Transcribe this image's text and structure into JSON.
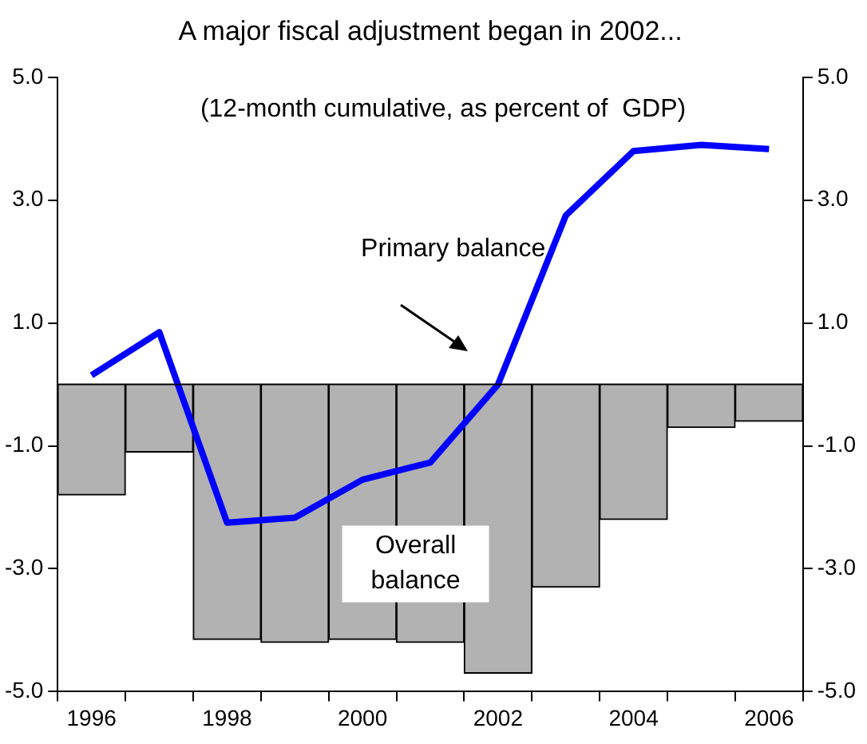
{
  "chart_data": {
    "type": "bar",
    "title": "A major fiscal adjustment began in 2002...",
    "annotations": [
      "(12-month cumulative, as percent of  GDP)"
    ],
    "categories": [
      "1996",
      null,
      "1998",
      null,
      "2000",
      null,
      "2002",
      null,
      "2004",
      null,
      "2006"
    ],
    "series": [
      {
        "name": "Overall balance",
        "color": "#b2b2b2",
        "values": [
          -1.8,
          -1.1,
          -4.15,
          -4.2,
          -4.15,
          -4.2,
          -4.7,
          -3.3,
          -2.2,
          -0.7,
          -0.6
        ]
      },
      {
        "name": "Primary balance",
        "type": "line",
        "color": "#0000ff",
        "values": [
          0.15,
          0.85,
          -2.25,
          -2.17,
          -1.55,
          -1.27,
          0.0,
          2.75,
          3.8,
          3.9,
          3.83
        ]
      }
    ],
    "ylim": [
      -5,
      5
    ],
    "yticks": [
      {
        "value": -5,
        "label": "-5.0"
      },
      {
        "value": -3,
        "label": "-3.0"
      },
      {
        "value": -1,
        "label": "-1.0"
      },
      {
        "value": 1,
        "label": "1.0"
      },
      {
        "value": 3,
        "label": "3.0"
      },
      {
        "value": 5,
        "label": "5.0"
      }
    ],
    "y2lim": [
      -5,
      5
    ],
    "y2ticks": [
      {
        "value": -5,
        "label": "-5.0"
      },
      {
        "value": -3,
        "label": "-3.0"
      },
      {
        "value": -1,
        "label": "-1.0"
      },
      {
        "value": 1,
        "label": "1.0"
      },
      {
        "value": 3,
        "label": "3.0"
      },
      {
        "value": 5,
        "label": "5.0"
      }
    ],
    "ref_lines": [
      {
        "axis": "y",
        "value": 0,
        "color": "#000000"
      }
    ],
    "grid": false,
    "legend": false,
    "marker": "none",
    "line_style": "solid"
  }
}
